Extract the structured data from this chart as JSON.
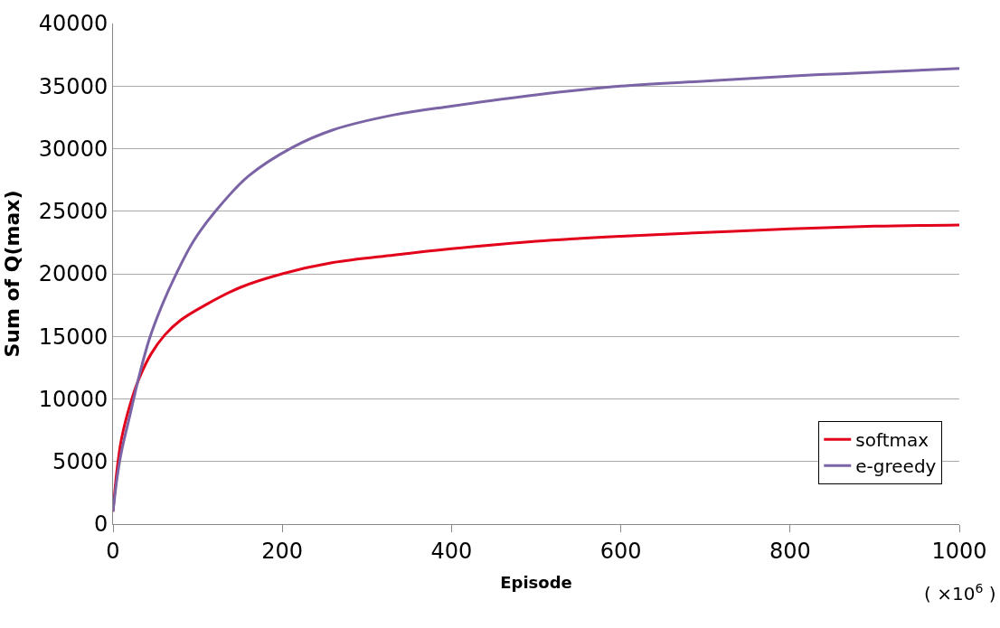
{
  "chart_data": {
    "type": "line",
    "xlabel": "Episode",
    "ylabel": "Sum of Q(max)",
    "annotations": [
      "( ×10$^{6}$ )"
    ],
    "xlim": [
      0,
      1000
    ],
    "xticks": [
      0,
      200,
      400,
      600,
      800,
      1000
    ],
    "ylim": [
      0,
      40000
    ],
    "yticks": [
      0,
      5000,
      10000,
      15000,
      20000,
      25000,
      30000,
      35000,
      40000
    ],
    "grid": "y",
    "legend": "bottom right",
    "marker": "none",
    "line_style": "solid",
    "series": [
      {
        "name": "softmax",
        "color": "#e3001b",
        "x": [
          0,
          5,
          10,
          20,
          30,
          45,
          61,
          80,
          109,
          150,
          200,
          260,
          332,
          400,
          500,
          600,
          700,
          800,
          900,
          1000
        ],
        "values": [
          1000,
          4500,
          6800,
          9500,
          11500,
          13600,
          15100,
          16300,
          17500,
          18900,
          20000,
          20900,
          21500,
          22000,
          22600,
          23000,
          23300,
          23600,
          23800,
          23900
        ]
      },
      {
        "name": "e-greedy",
        "color": "#7b64a6",
        "x": [
          0,
          5,
          10,
          20,
          30,
          43,
          58,
          74,
          95,
          121,
          160,
          212,
          260,
          332,
          400,
          500,
          600,
          700,
          800,
          900,
          1000
        ],
        "values": [
          1000,
          3800,
          5800,
          8700,
          11600,
          14800,
          17500,
          19900,
          22600,
          25000,
          27800,
          30100,
          31500,
          32700,
          33400,
          34300,
          35000,
          35400,
          35800,
          36100,
          36400
        ]
      }
    ]
  }
}
